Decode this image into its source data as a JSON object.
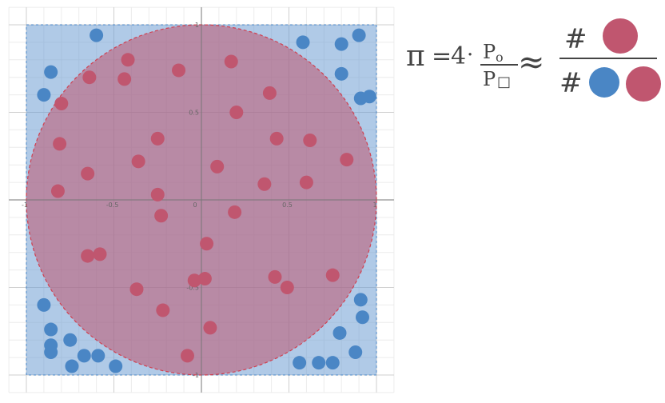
{
  "chart_data": {
    "type": "scatter",
    "title": "",
    "xlabel": "",
    "ylabel": "",
    "xlim": [
      -1.1,
      1.1
    ],
    "ylim": [
      -1.1,
      1.1
    ],
    "grid": true,
    "x_ticks": [
      "-1",
      "-0.5",
      "0",
      "0.5",
      "1"
    ],
    "y_ticks": [
      "1",
      "0.5",
      "-0.5",
      "-1"
    ],
    "square": {
      "xmin": -1,
      "xmax": 1,
      "ymin": -1,
      "ymax": 1
    },
    "circle": {
      "cx": 0,
      "cy": 0,
      "r": 1
    },
    "series": [
      {
        "color": "#4a86c5",
        "points": [
          [
            -0.6,
            0.94
          ],
          [
            -0.86,
            0.73
          ],
          [
            -0.9,
            0.6
          ],
          [
            0.58,
            0.9
          ],
          [
            0.8,
            0.89
          ],
          [
            0.9,
            0.94
          ],
          [
            0.8,
            0.72
          ],
          [
            0.91,
            0.58
          ],
          [
            0.96,
            0.59
          ],
          [
            -0.9,
            -0.6
          ],
          [
            -0.86,
            -0.74
          ],
          [
            -0.86,
            -0.83
          ],
          [
            -0.86,
            -0.87
          ],
          [
            -0.75,
            -0.8
          ],
          [
            -0.67,
            -0.89
          ],
          [
            -0.59,
            -0.89
          ],
          [
            -0.74,
            -0.95
          ],
          [
            -0.49,
            -0.95
          ],
          [
            0.56,
            -0.93
          ],
          [
            0.67,
            -0.93
          ],
          [
            0.75,
            -0.93
          ],
          [
            0.79,
            -0.76
          ],
          [
            0.88,
            -0.87
          ],
          [
            0.91,
            -0.57
          ],
          [
            0.92,
            -0.67
          ]
        ]
      },
      {
        "color": "#c0566f",
        "points": [
          [
            -0.42,
            0.8
          ],
          [
            -0.64,
            0.7
          ],
          [
            -0.44,
            0.69
          ],
          [
            -0.13,
            0.74
          ],
          [
            0.17,
            0.79
          ],
          [
            -0.8,
            0.55
          ],
          [
            0.39,
            0.61
          ],
          [
            0.2,
            0.5
          ],
          [
            -0.81,
            0.32
          ],
          [
            -0.25,
            0.35
          ],
          [
            0.43,
            0.35
          ],
          [
            0.62,
            0.34
          ],
          [
            -0.36,
            0.22
          ],
          [
            -0.65,
            0.15
          ],
          [
            0.09,
            0.19
          ],
          [
            0.83,
            0.23
          ],
          [
            -0.82,
            0.05
          ],
          [
            -0.25,
            0.03
          ],
          [
            0.36,
            0.09
          ],
          [
            0.6,
            0.1
          ],
          [
            -0.23,
            -0.09
          ],
          [
            0.19,
            -0.07
          ],
          [
            0.03,
            -0.25
          ],
          [
            -0.65,
            -0.32
          ],
          [
            -0.58,
            -0.31
          ],
          [
            -0.04,
            -0.46
          ],
          [
            0.02,
            -0.45
          ],
          [
            0.42,
            -0.44
          ],
          [
            0.49,
            -0.5
          ],
          [
            0.75,
            -0.43
          ],
          [
            -0.37,
            -0.51
          ],
          [
            -0.22,
            -0.63
          ],
          [
            0.05,
            -0.73
          ],
          [
            -0.08,
            -0.89
          ]
        ]
      }
    ]
  },
  "formula": {
    "pi": "π",
    "eq": "=",
    "four": "4",
    "dot": "·",
    "p": "P",
    "sub_circle": "o",
    "sub_square": "□",
    "approx": "≈",
    "hash": "#",
    "colors": {
      "red": "#c0566f",
      "blue": "#4a86c5"
    }
  }
}
